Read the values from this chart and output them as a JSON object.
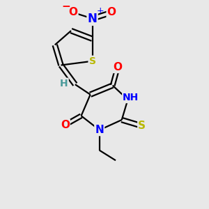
{
  "bg_color": "#e8e8e8",
  "bond_color": "#000000",
  "atom_colors": {
    "N": "#0000ff",
    "O": "#ff0000",
    "S": "#b8b800",
    "H": "#4a9a9a",
    "C": "#000000"
  }
}
